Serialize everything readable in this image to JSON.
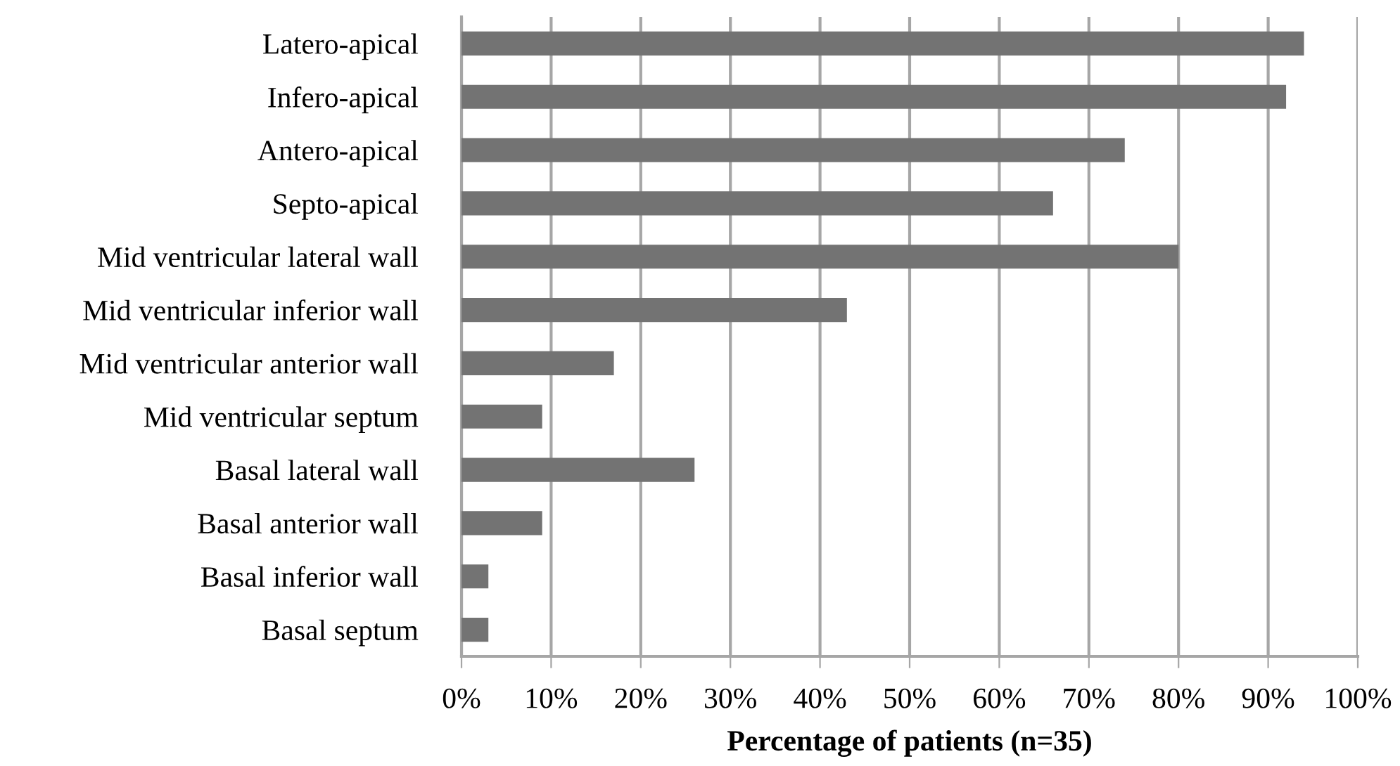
{
  "chart_data": {
    "type": "bar",
    "orientation": "horizontal",
    "xlabel": "Percentage of patients (n=35)",
    "categories": [
      "Latero-apical",
      "Infero-apical",
      "Antero-apical",
      "Septo-apical",
      "Mid ventricular lateral wall",
      "Mid ventricular inferior wall",
      "Mid ventricular anterior wall",
      "Mid ventricular septum",
      "Basal lateral wall",
      "Basal anterior wall",
      "Basal inferior wall",
      "Basal septum"
    ],
    "values": [
      94,
      92,
      74,
      66,
      80,
      43,
      17,
      9,
      26,
      9,
      3,
      3
    ],
    "color": "#737373",
    "xlim": [
      0,
      100
    ],
    "xticks": [
      {
        "value": 0,
        "label": "0%"
      },
      {
        "value": 10,
        "label": "10%"
      },
      {
        "value": 20,
        "label": "20%"
      },
      {
        "value": 30,
        "label": "30%"
      },
      {
        "value": 40,
        "label": "40%"
      },
      {
        "value": 50,
        "label": "50%"
      },
      {
        "value": 60,
        "label": "60%"
      },
      {
        "value": 70,
        "label": "70%"
      },
      {
        "value": 80,
        "label": "80%"
      },
      {
        "value": 90,
        "label": "90%"
      },
      {
        "value": 100,
        "label": "100%"
      }
    ],
    "grid": "x",
    "legend": false
  }
}
